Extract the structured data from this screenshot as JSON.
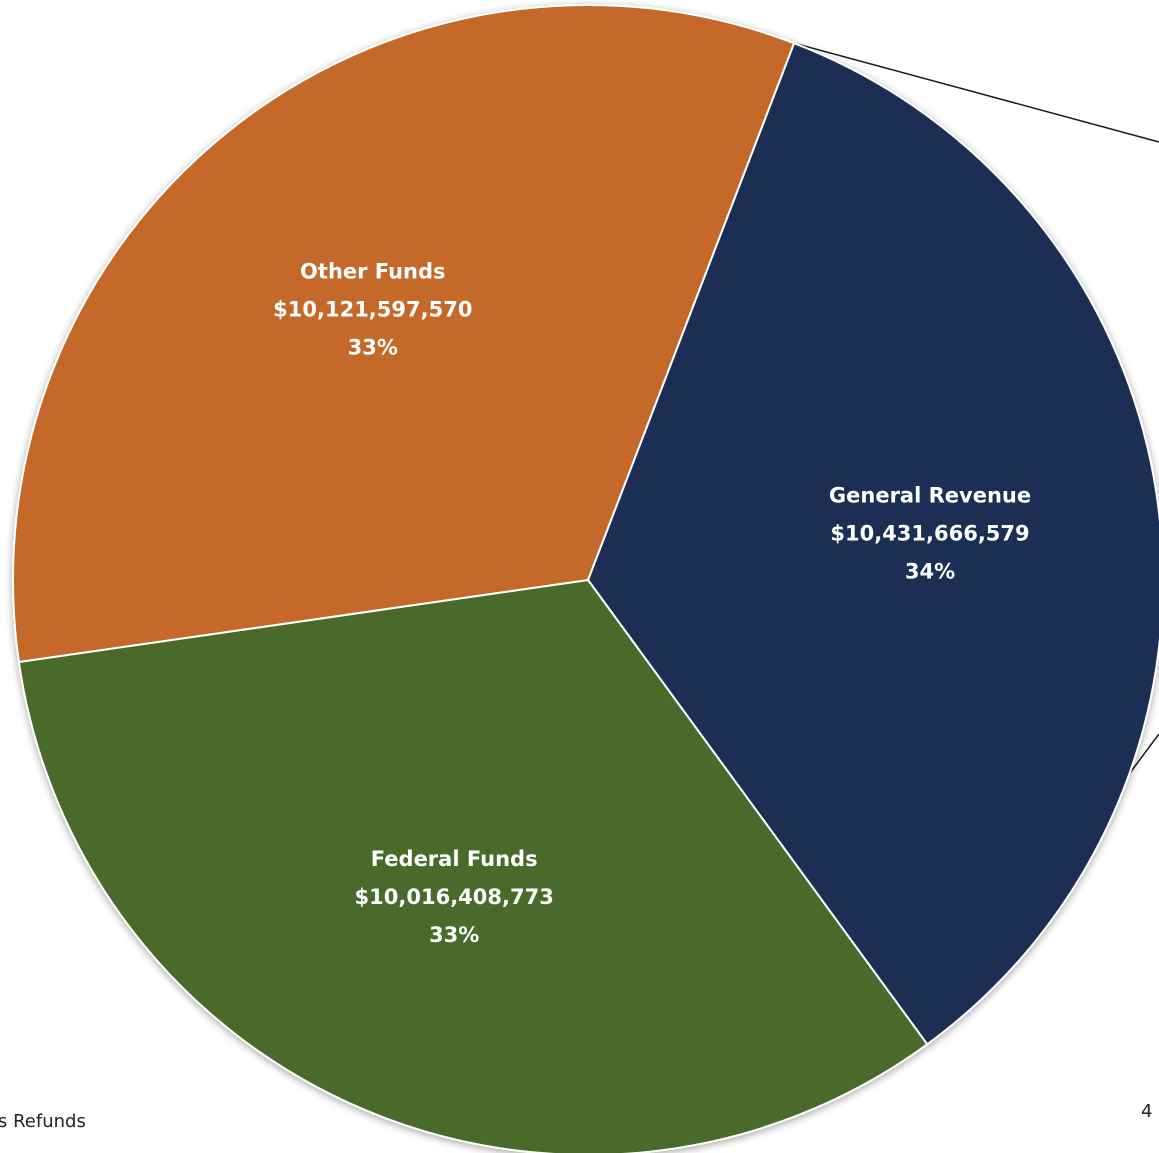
{
  "chart_data": {
    "type": "pie",
    "title": "",
    "slices": [
      {
        "name": "General Revenue",
        "value": 10431666579,
        "value_label": "$10,431,666,579",
        "percent_label": "34%",
        "color": "#1b2e52"
      },
      {
        "name": "Federal Funds",
        "value": 10016408773,
        "value_label": "$10,016,408,773",
        "percent_label": "33%",
        "color": "#4a6b2c"
      },
      {
        "name": "Other Funds",
        "value": 10121597570,
        "value_label": "$10,121,597,570",
        "percent_label": "33%",
        "color": "#c4692a"
      }
    ],
    "legend": "none",
    "exploded_slice": "General Revenue"
  },
  "footer": {
    "left_text": "s Refunds",
    "page_number": "4"
  }
}
